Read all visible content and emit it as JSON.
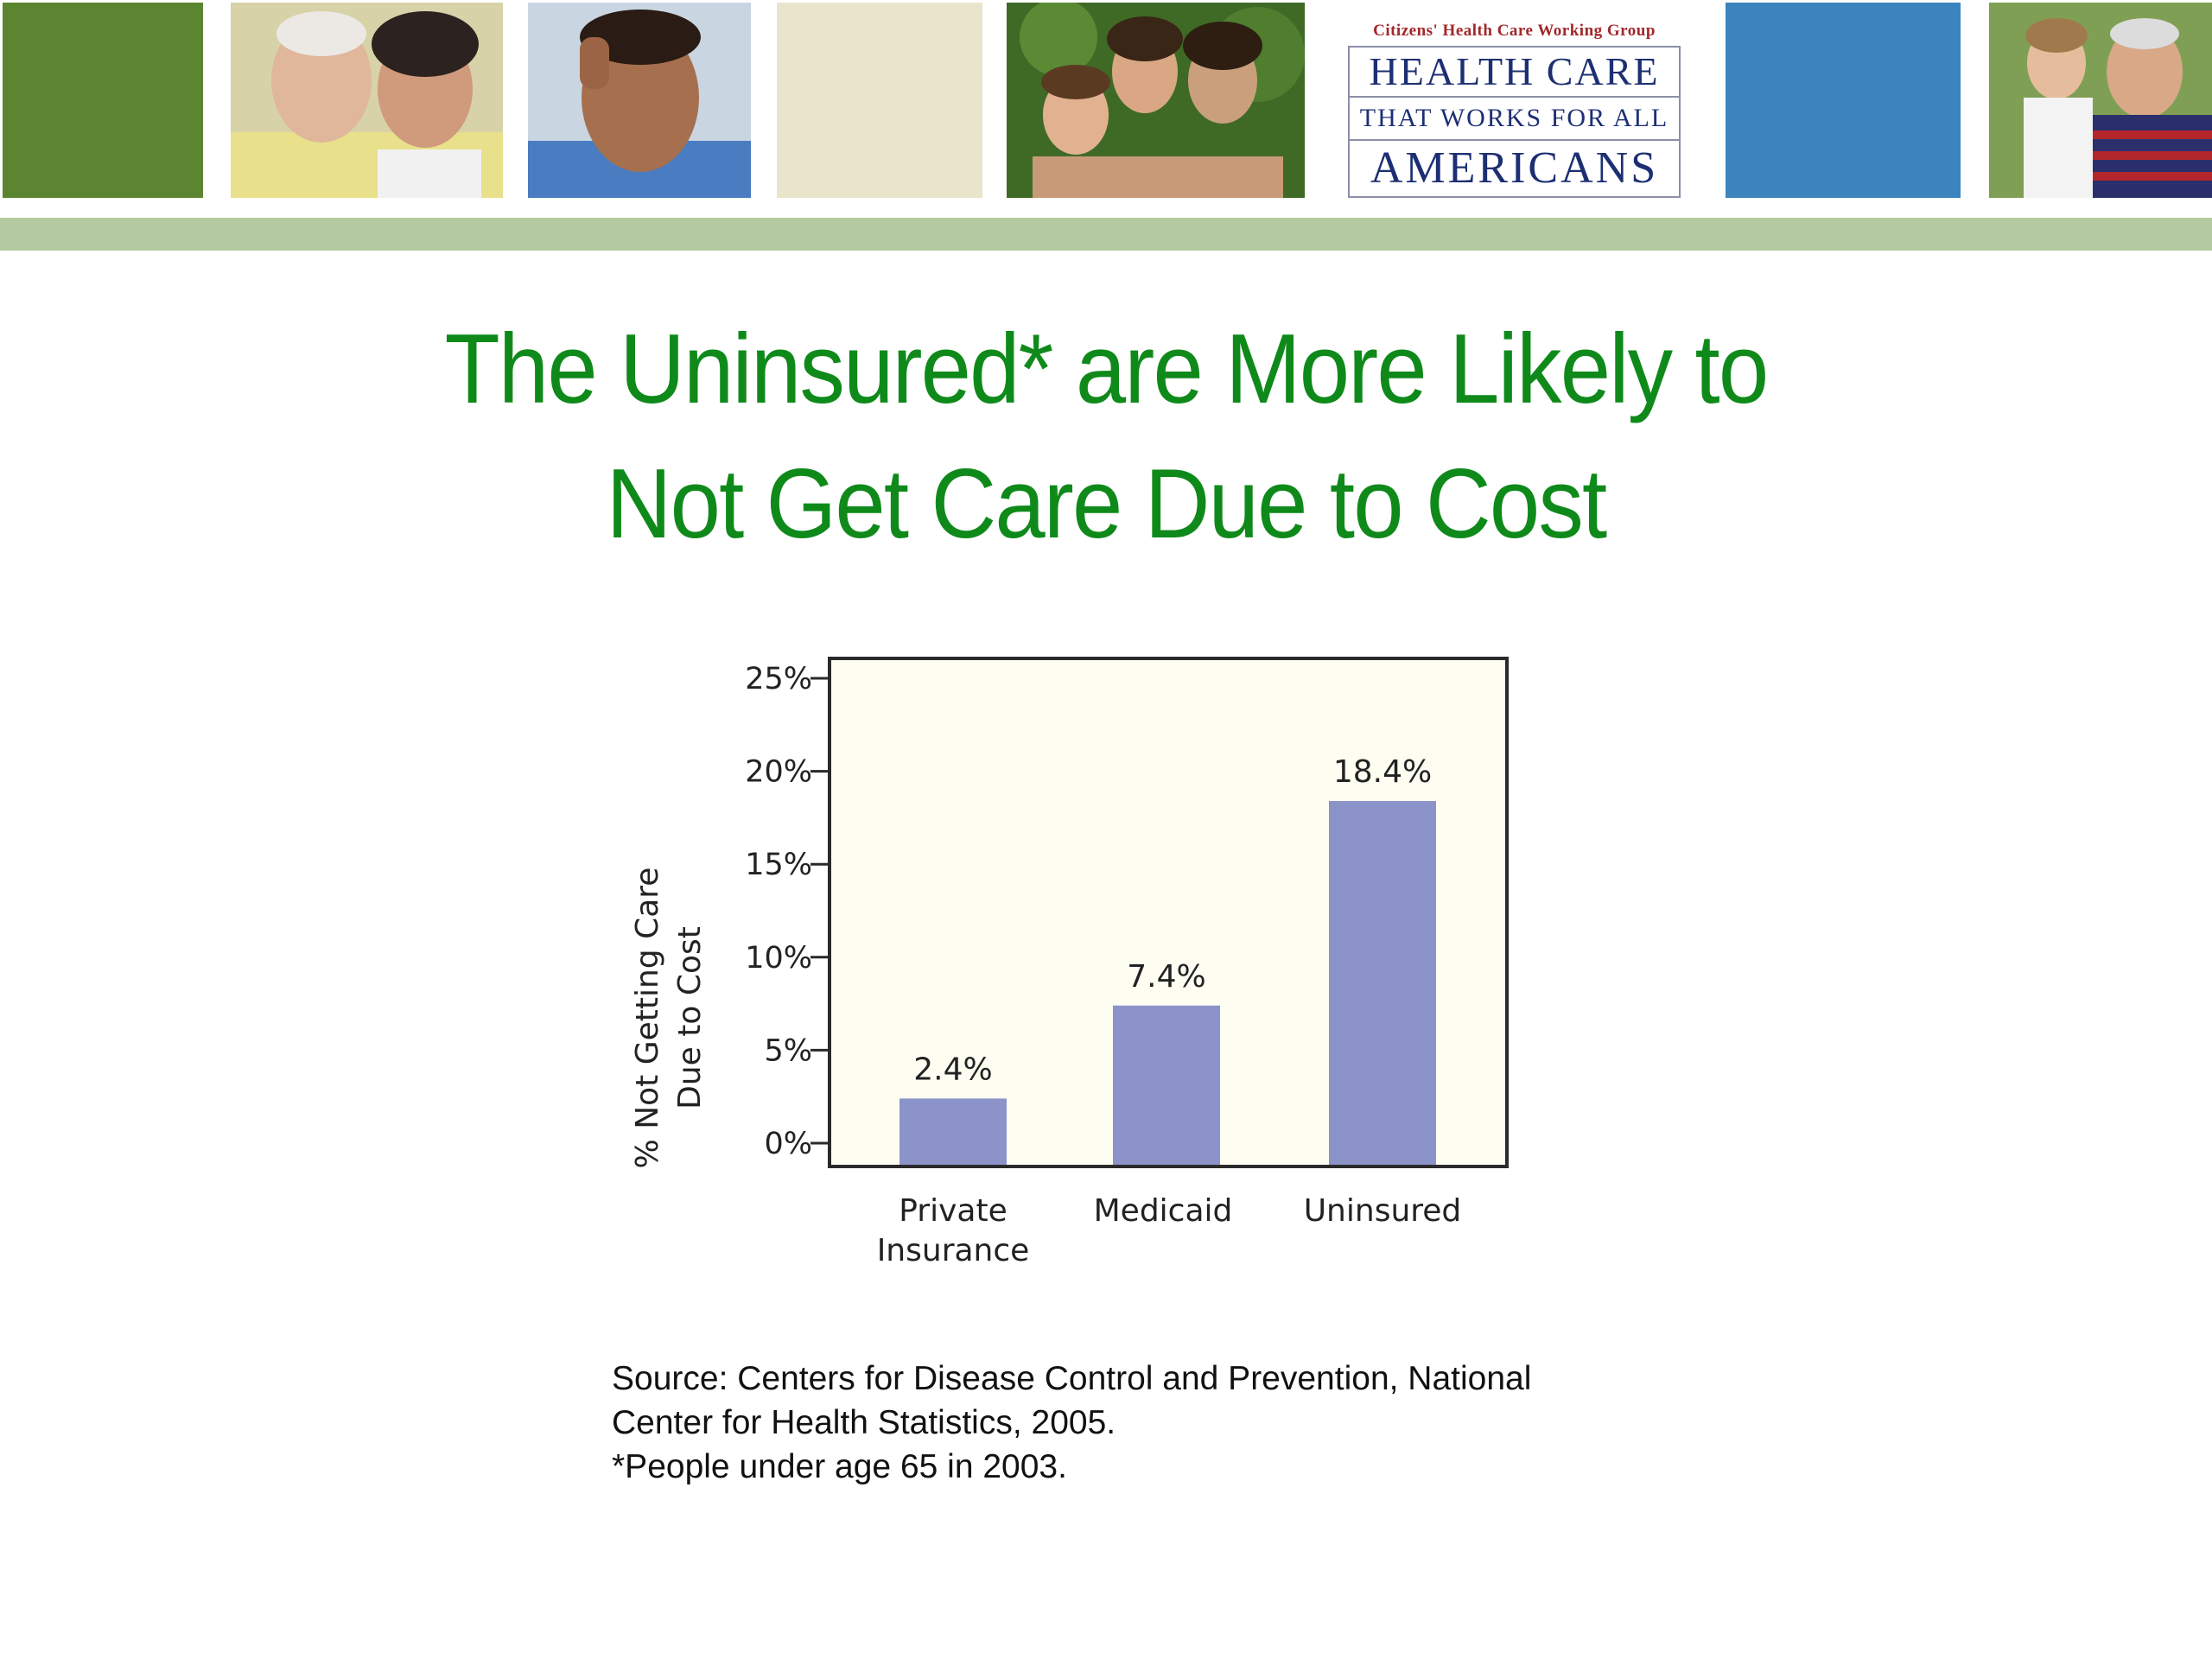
{
  "banner": {
    "colors": {
      "green": "#5b8530",
      "cream": "#e9e5cc",
      "blue": "#3b84be",
      "stripe": "#b5c9a0"
    },
    "logo": {
      "top_text": "Citizens' Health Care Working Group",
      "line1": "HEALTH CARE",
      "line2": "THAT WORKS FOR ALL",
      "line3": "AMERICANS"
    }
  },
  "title": {
    "line1": "The Uninsured* are More Likely to",
    "line2": "Not Get Care Due to Cost",
    "color": "#0f8a1a"
  },
  "chart_data": {
    "type": "bar",
    "categories": [
      "Private Insurance",
      "Medicaid",
      "Uninsured"
    ],
    "category_lines": [
      [
        "Private",
        "Insurance"
      ],
      [
        "Medicaid"
      ],
      [
        "Uninsured"
      ]
    ],
    "values": [
      2.4,
      7.4,
      18.4
    ],
    "data_labels": [
      "2.4%",
      "7.4%",
      "18.4%"
    ],
    "ylabel": "% Not Getting Care Due to Cost",
    "ylabel_lines": [
      "% Not Getting Care",
      "Due to Cost"
    ],
    "ylim": [
      0,
      25
    ],
    "yticks": [
      0,
      5,
      10,
      15,
      20,
      25
    ],
    "ytick_labels": [
      "0%",
      "5%",
      "10%",
      "15%",
      "20%",
      "25%"
    ],
    "grid": false,
    "bar_color": "#8b93c9",
    "plot_background": "#fefdf2"
  },
  "source": {
    "line1": "Source:  Centers for Disease Control and Prevention, National",
    "line2": "Center for Health Statistics, 2005.",
    "line3": "*People under age 65 in 2003."
  }
}
